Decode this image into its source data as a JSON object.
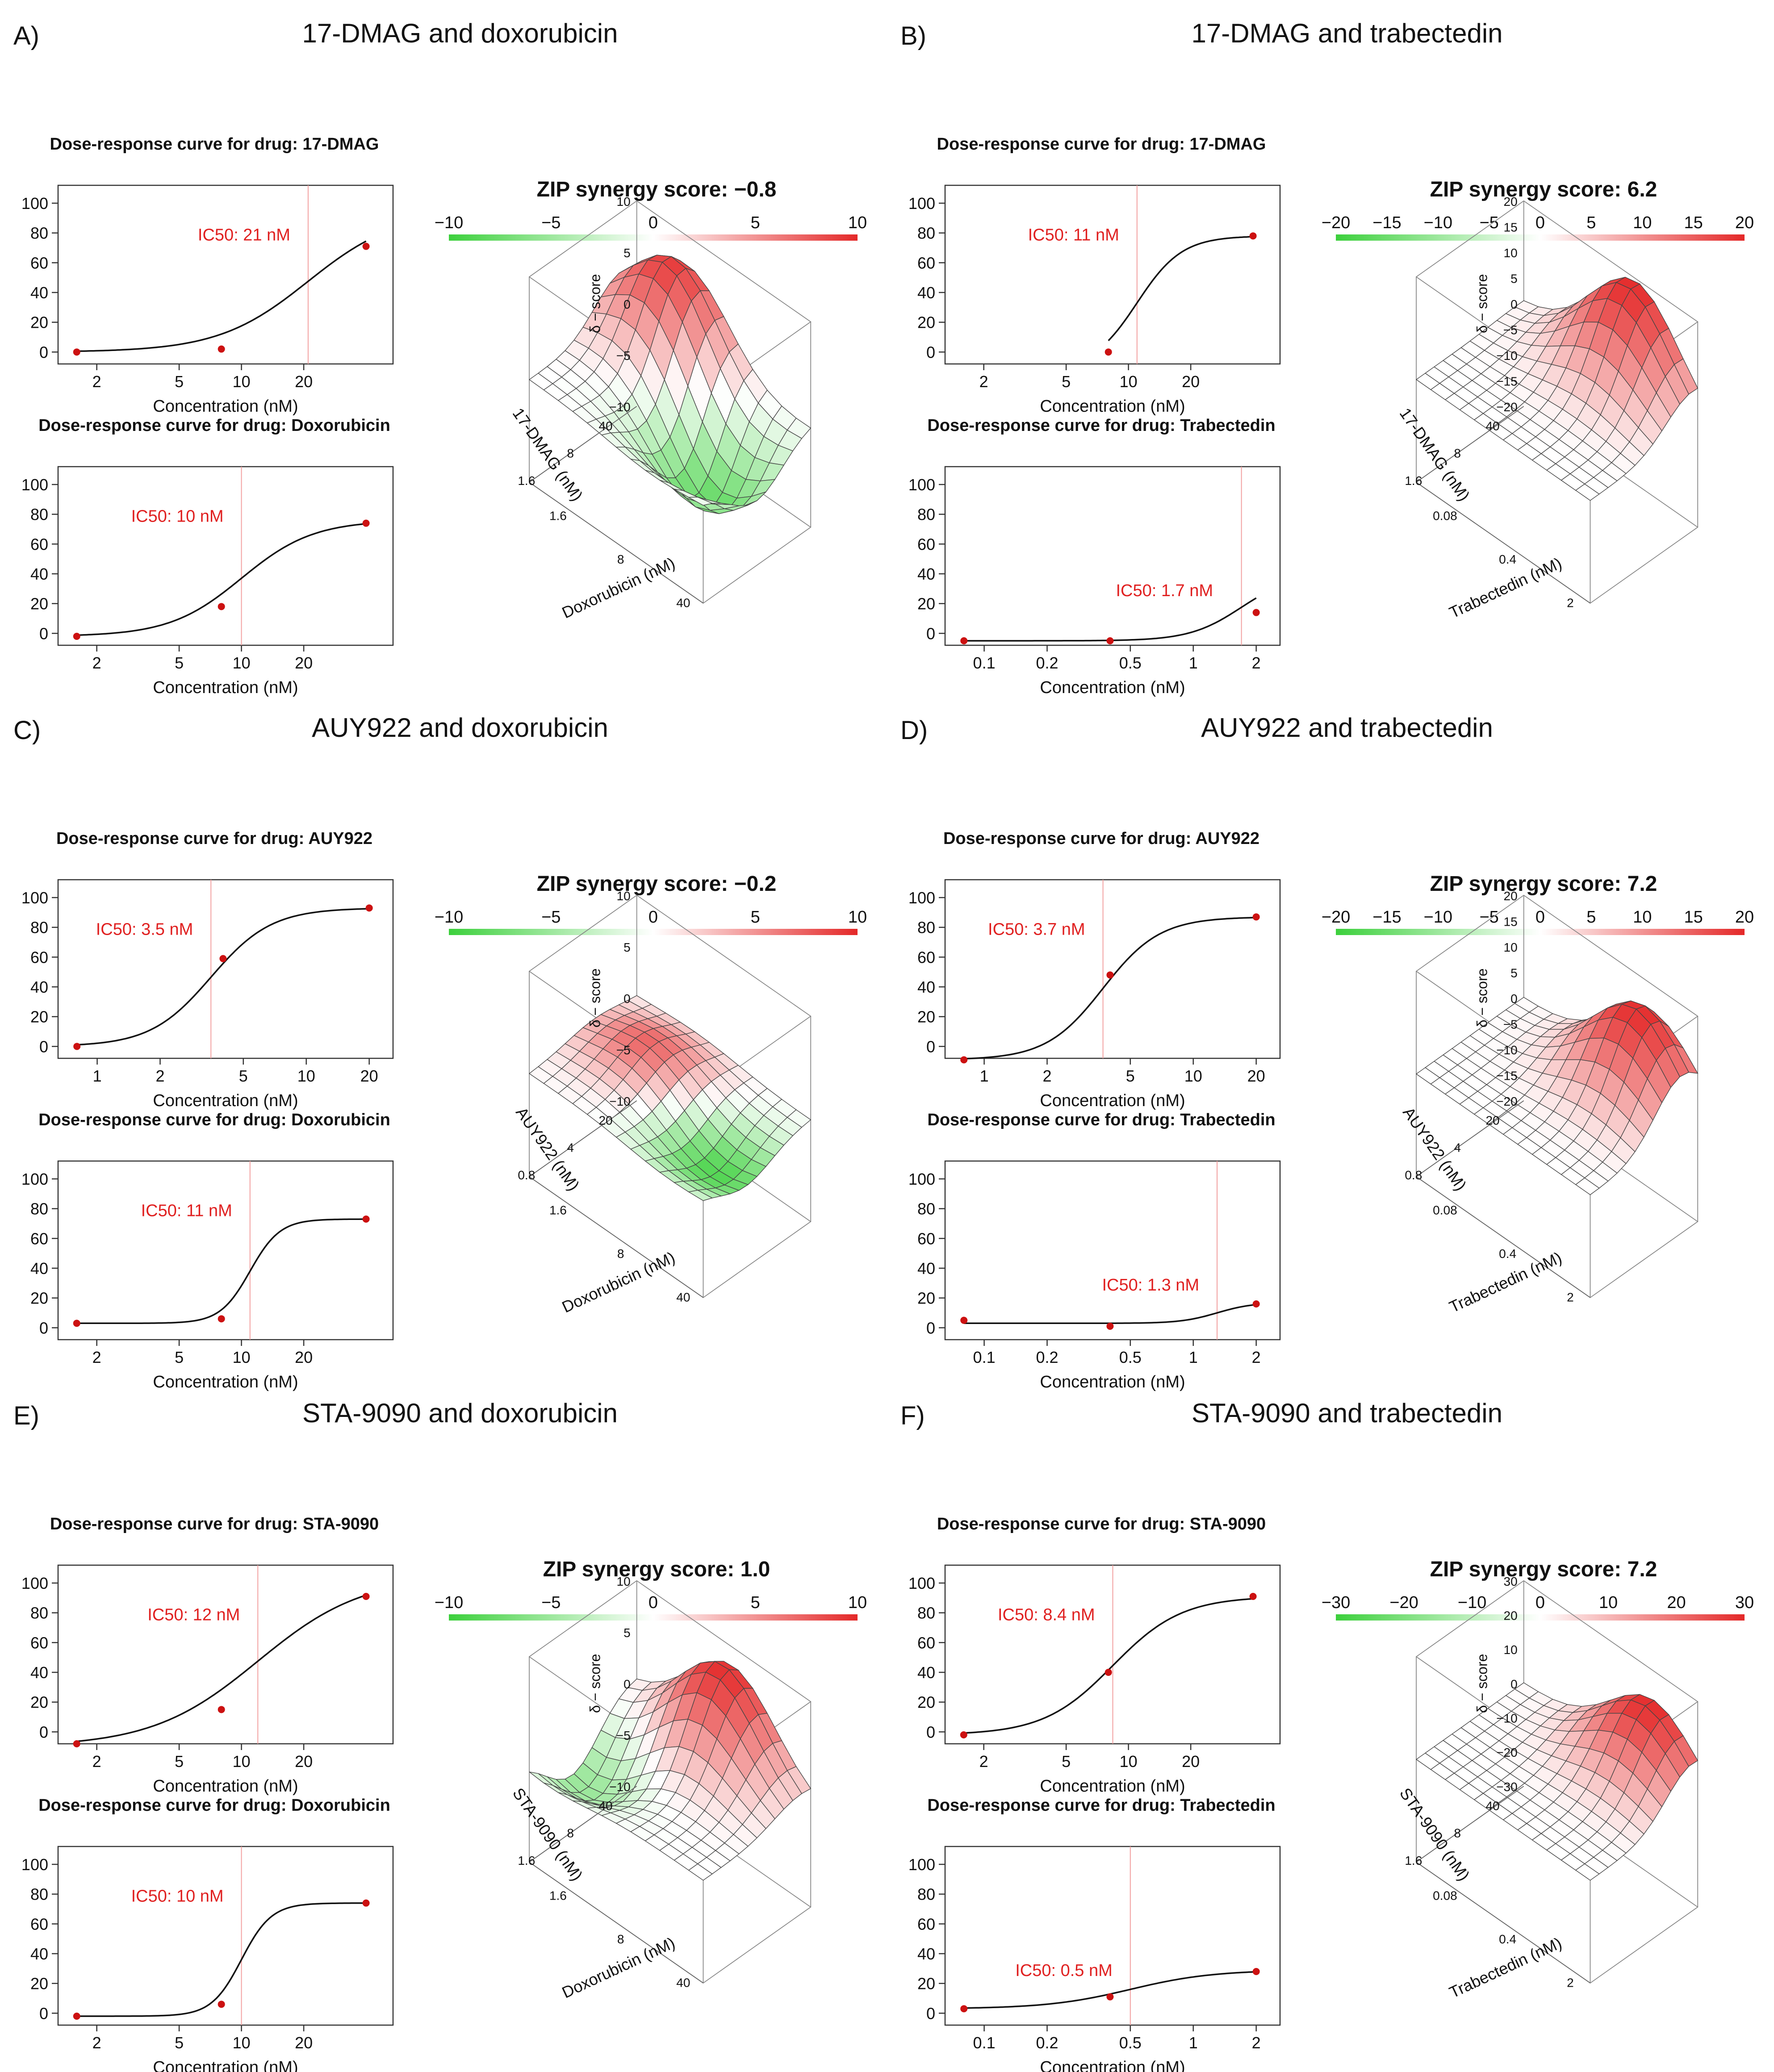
{
  "colors": {
    "marker": "#cc1111",
    "ic50_text": "#e02020",
    "ic50_line": "#f2a0a0",
    "curve": "#111111",
    "surface_red": "#e42a2a",
    "surface_green": "#3fd03f",
    "grid": "#444444"
  },
  "chart_data": [
    {
      "type": "line",
      "panel": "A",
      "letter": "A)",
      "title": "17-DMAG and doxorubicin",
      "curves": [
        {
          "title": "Dose-response curve for drug: 17-DMAG",
          "ic50_label": "IC50: 21 nM",
          "ic50": 21,
          "xlabel": "Concentration (nM)",
          "xticks": [
            "2",
            "5",
            "10",
            "20"
          ],
          "xscale": "log",
          "xlim": [
            1.3,
            54
          ],
          "yticks": [
            "0",
            "20",
            "40",
            "60",
            "80",
            "100"
          ],
          "ylim": [
            -8,
            112
          ],
          "points": [
            [
              1.6,
              0
            ],
            [
              8,
              2
            ],
            [
              40,
              71
            ]
          ],
          "bottom": 0,
          "top": 95,
          "hill": 2.0
        },
        {
          "title": "Dose-response curve for drug: Doxorubicin",
          "ic50_label": "IC50: 10 nM",
          "ic50": 10,
          "xlabel": "Concentration (nM)",
          "xticks": [
            "2",
            "5",
            "10",
            "20"
          ],
          "xscale": "log",
          "xlim": [
            1.3,
            54
          ],
          "yticks": [
            "0",
            "20",
            "40",
            "60",
            "80",
            "100"
          ],
          "ylim": [
            -8,
            112
          ],
          "points": [
            [
              1.6,
              -2
            ],
            [
              8,
              18
            ],
            [
              40,
              74
            ]
          ],
          "bottom": -2,
          "top": 76,
          "hill": 2.5
        }
      ],
      "surface": {
        "title": "ZIP synergy score: −0.8",
        "score": -0.8,
        "colorbar_ticks": [
          "−10",
          "−5",
          "0",
          "5",
          "10"
        ],
        "zlim": [
          -10,
          10
        ],
        "zticks": [
          "10",
          "5",
          "0",
          "−5",
          "−10"
        ],
        "zlabel": "δ − score",
        "ylabel": "17-DMAG (nM)",
        "yticks": [
          "40",
          "8",
          "1.6"
        ],
        "xlabel": "Doxorubicin (nM)",
        "xticks": [
          "1.6",
          "8",
          "40"
        ],
        "peak": 9,
        "peak_loc": [
          0.3,
          0.85
        ],
        "trough": -8,
        "trough_loc": [
          0.7,
          0.5
        ]
      }
    },
    {
      "type": "line",
      "panel": "B",
      "letter": "B)",
      "title": "17-DMAG and trabectedin",
      "curves": [
        {
          "title": "Dose-response curve for drug: 17-DMAG",
          "ic50_label": "IC50: 11 nM",
          "ic50": 11,
          "xlabel": "Concentration (nM)",
          "xticks": [
            "2",
            "5",
            "10",
            "20"
          ],
          "xscale": "log",
          "xlim": [
            1.3,
            54
          ],
          "yticks": [
            "0",
            "20",
            "40",
            "60",
            "80",
            "100"
          ],
          "ylim": [
            -8,
            112
          ],
          "points": [
            [
              8,
              0
            ],
            [
              40,
              78
            ]
          ],
          "bottom": -12,
          "top": 78,
          "hill": 4.0
        },
        {
          "title": "Dose-response curve for drug: Trabectedin",
          "ic50_label": "IC50: 1.7 nM",
          "ic50": 1.7,
          "xlabel": "Concentration (nM)",
          "xticks": [
            "0.1",
            "0.2",
            "0.5",
            "1",
            "2"
          ],
          "xscale": "log",
          "xlim": [
            0.065,
            2.6
          ],
          "yticks": [
            "0",
            "20",
            "40",
            "60",
            "80",
            "100"
          ],
          "ylim": [
            -8,
            112
          ],
          "points": [
            [
              0.08,
              -5
            ],
            [
              0.4,
              -5
            ],
            [
              2,
              14
            ]
          ],
          "bottom": -5,
          "top": 40,
          "hill": 3.5
        }
      ],
      "surface": {
        "title": "ZIP synergy score: 6.2",
        "score": 6.2,
        "colorbar_ticks": [
          "−20",
          "−15",
          "−10",
          "−5",
          "0",
          "5",
          "10",
          "15",
          "20"
        ],
        "zlim": [
          -20,
          20
        ],
        "zticks": [
          "20",
          "15",
          "10",
          "5",
          "0",
          "−5",
          "−10",
          "−15",
          "−20"
        ],
        "zlabel": "δ − score",
        "ylabel": "17-DMAG (nM)",
        "yticks": [
          "40",
          "8",
          "1.6"
        ],
        "xlabel": "Trabectedin (nM)",
        "xticks": [
          "0.08",
          "0.4",
          "2"
        ],
        "peak": 20,
        "peak_loc": [
          0.65,
          0.95
        ],
        "trough": 0,
        "trough_loc": [
          0.1,
          0.1
        ]
      }
    },
    {
      "type": "line",
      "panel": "C",
      "letter": "C)",
      "title": "AUY922 and doxorubicin",
      "curves": [
        {
          "title": "Dose-response curve for drug: AUY922",
          "ic50_label": "IC50: 3.5 nM",
          "ic50": 3.5,
          "xlabel": "Concentration (nM)",
          "xticks": [
            "1",
            "2",
            "5",
            "10",
            "20"
          ],
          "xscale": "log",
          "xlim": [
            0.65,
            26
          ],
          "yticks": [
            "0",
            "20",
            "40",
            "60",
            "80",
            "100"
          ],
          "ylim": [
            -8,
            112
          ],
          "points": [
            [
              0.8,
              0
            ],
            [
              4,
              59
            ],
            [
              20,
              93
            ]
          ],
          "bottom": 0,
          "top": 93,
          "hill": 3.0
        },
        {
          "title": "Dose-response curve for drug: Doxorubicin",
          "ic50_label": "IC50: 11 nM",
          "ic50": 11,
          "xlabel": "Concentration (nM)",
          "xticks": [
            "2",
            "5",
            "10",
            "20"
          ],
          "xscale": "log",
          "xlim": [
            1.3,
            54
          ],
          "yticks": [
            "0",
            "20",
            "40",
            "60",
            "80",
            "100"
          ],
          "ylim": [
            -8,
            112
          ],
          "points": [
            [
              1.6,
              3
            ],
            [
              8,
              6
            ],
            [
              40,
              73
            ]
          ],
          "bottom": 3,
          "top": 73,
          "hill": 6.0
        }
      ],
      "surface": {
        "title": "ZIP synergy score: −0.2",
        "score": -0.2,
        "colorbar_ticks": [
          "−10",
          "−5",
          "0",
          "5",
          "10"
        ],
        "zlim": [
          -10,
          10
        ],
        "zticks": [
          "10",
          "5",
          "0",
          "−5",
          "−10"
        ],
        "zlabel": "δ − score",
        "ylabel": "AUY922 (nM)",
        "yticks": [
          "20",
          "4",
          "0.8"
        ],
        "xlabel": "Doxorubicin (nM)",
        "xticks": [
          "1.6",
          "8",
          "40"
        ],
        "peak": 2.5,
        "peak_loc": [
          0.35,
          0.6
        ],
        "trough": -3,
        "trough_loc": [
          0.8,
          0.4
        ]
      }
    },
    {
      "type": "line",
      "panel": "D",
      "letter": "D)",
      "title": "AUY922 and trabectedin",
      "curves": [
        {
          "title": "Dose-response curve for drug: AUY922",
          "ic50_label": "IC50: 3.7 nM",
          "ic50": 3.7,
          "xlabel": "Concentration (nM)",
          "xticks": [
            "1",
            "2",
            "5",
            "10",
            "20"
          ],
          "xscale": "log",
          "xlim": [
            0.65,
            26
          ],
          "yticks": [
            "0",
            "20",
            "40",
            "60",
            "80",
            "100"
          ],
          "ylim": [
            -8,
            112
          ],
          "points": [
            [
              0.8,
              -9
            ],
            [
              4,
              48
            ],
            [
              20,
              87
            ]
          ],
          "bottom": -9,
          "top": 87,
          "hill": 3.2
        },
        {
          "title": "Dose-response curve for drug: Trabectedin",
          "ic50_label": "IC50: 1.3 nM",
          "ic50": 1.3,
          "xlabel": "Concentration (nM)",
          "xticks": [
            "0.1",
            "0.2",
            "0.5",
            "1",
            "2"
          ],
          "xscale": "log",
          "xlim": [
            0.065,
            2.6
          ],
          "yticks": [
            "0",
            "20",
            "40",
            "60",
            "80",
            "100"
          ],
          "ylim": [
            -8,
            112
          ],
          "points": [
            [
              0.08,
              5
            ],
            [
              0.4,
              1
            ],
            [
              2,
              16
            ]
          ],
          "bottom": 3,
          "top": 17,
          "hill": 5.0
        }
      ],
      "surface": {
        "title": "ZIP synergy score: 7.2",
        "score": 7.2,
        "colorbar_ticks": [
          "−20",
          "−15",
          "−10",
          "−5",
          "0",
          "5",
          "10",
          "15",
          "20"
        ],
        "zlim": [
          -20,
          20
        ],
        "zticks": [
          "20",
          "15",
          "10",
          "5",
          "0",
          "−5",
          "−10",
          "−15",
          "−20"
        ],
        "zlabel": "δ − score",
        "ylabel": "AUY922 (nM)",
        "yticks": [
          "20",
          "4",
          "0.8"
        ],
        "xlabel": "Trabectedin (nM)",
        "xticks": [
          "0.08",
          "0.4",
          "2"
        ],
        "peak": 18,
        "peak_loc": [
          0.75,
          0.85
        ],
        "trough": 0,
        "trough_loc": [
          0.1,
          0.1
        ]
      }
    },
    {
      "type": "line",
      "panel": "E",
      "letter": "E)",
      "title": "STA-9090 and doxorubicin",
      "curves": [
        {
          "title": "Dose-response curve for drug: STA-9090",
          "ic50_label": "IC50: 12 nM",
          "ic50": 12,
          "xlabel": "Concentration (nM)",
          "xticks": [
            "2",
            "5",
            "10",
            "20"
          ],
          "xscale": "log",
          "xlim": [
            1.3,
            54
          ],
          "yticks": [
            "0",
            "20",
            "40",
            "60",
            "80",
            "100"
          ],
          "ylim": [
            -8,
            112
          ],
          "points": [
            [
              1.6,
              -8
            ],
            [
              8,
              15
            ],
            [
              40,
              91
            ]
          ],
          "bottom": -10,
          "top": 105,
          "hill": 1.7
        },
        {
          "title": "Dose-response curve for drug: Doxorubicin",
          "ic50_label": "IC50: 10 nM",
          "ic50": 10,
          "xlabel": "Concentration (nM)",
          "xticks": [
            "2",
            "5",
            "10",
            "20"
          ],
          "xscale": "log",
          "xlim": [
            1.3,
            54
          ],
          "yticks": [
            "0",
            "20",
            "40",
            "60",
            "80",
            "100"
          ],
          "ylim": [
            -8,
            112
          ],
          "points": [
            [
              1.6,
              -2
            ],
            [
              8,
              6
            ],
            [
              40,
              74
            ]
          ],
          "bottom": -2,
          "top": 74,
          "hill": 6.0
        }
      ],
      "surface": {
        "title": "ZIP synergy score: 1.0",
        "score": 1.0,
        "colorbar_ticks": [
          "−10",
          "−5",
          "0",
          "5",
          "10"
        ],
        "zlim": [
          -10,
          10
        ],
        "zticks": [
          "10",
          "5",
          "0",
          "−5",
          "−10"
        ],
        "zlabel": "δ − score",
        "ylabel": "STA-9090 (nM)",
        "yticks": [
          "40",
          "8",
          "1.6"
        ],
        "xlabel": "Doxorubicin (nM)",
        "xticks": [
          "1.6",
          "8",
          "40"
        ],
        "peak": 9,
        "peak_loc": [
          0.55,
          0.9
        ],
        "trough": -5,
        "trough_loc": [
          0.1,
          0.4
        ]
      }
    },
    {
      "type": "line",
      "panel": "F",
      "letter": "F)",
      "title": "STA-9090 and trabectedin",
      "curves": [
        {
          "title": "Dose-response curve for drug: STA-9090",
          "ic50_label": "IC50: 8.4 nM",
          "ic50": 8.4,
          "xlabel": "Concentration (nM)",
          "xticks": [
            "2",
            "5",
            "10",
            "20"
          ],
          "xscale": "log",
          "xlim": [
            1.3,
            54
          ],
          "yticks": [
            "0",
            "20",
            "40",
            "60",
            "80",
            "100"
          ],
          "ylim": [
            -8,
            112
          ],
          "points": [
            [
              1.6,
              -2
            ],
            [
              8,
              40
            ],
            [
              40,
              91
            ]
          ],
          "bottom": -2,
          "top": 91,
          "hill": 2.6
        },
        {
          "title": "Dose-response curve for drug: Trabectedin",
          "ic50_label": "IC50: 0.5 nM",
          "ic50": 0.5,
          "xlabel": "Concentration (nM)",
          "xticks": [
            "0.1",
            "0.2",
            "0.5",
            "1",
            "2"
          ],
          "xscale": "log",
          "xlim": [
            0.065,
            2.6
          ],
          "yticks": [
            "0",
            "20",
            "40",
            "60",
            "80",
            "100"
          ],
          "ylim": [
            -8,
            112
          ],
          "points": [
            [
              0.08,
              3
            ],
            [
              0.4,
              11
            ],
            [
              2,
              28
            ]
          ],
          "bottom": 3,
          "top": 29,
          "hill": 2.2
        }
      ],
      "surface": {
        "title": "ZIP synergy score: 7.2",
        "score": 7.2,
        "colorbar_ticks": [
          "−30",
          "−20",
          "−10",
          "0",
          "10",
          "20",
          "30"
        ],
        "zlim": [
          -30,
          30
        ],
        "zticks": [
          "30",
          "20",
          "10",
          "0",
          "−10",
          "−20",
          "−30"
        ],
        "zlabel": "δ − score",
        "ylabel": "STA-9090 (nM)",
        "yticks": [
          "40",
          "8",
          "1.6"
        ],
        "xlabel": "Trabectedin (nM)",
        "xticks": [
          "0.08",
          "0.4",
          "2"
        ],
        "peak": 22,
        "peak_loc": [
          0.75,
          0.95
        ],
        "trough": 0,
        "trough_loc": [
          0.1,
          0.1
        ]
      }
    }
  ]
}
